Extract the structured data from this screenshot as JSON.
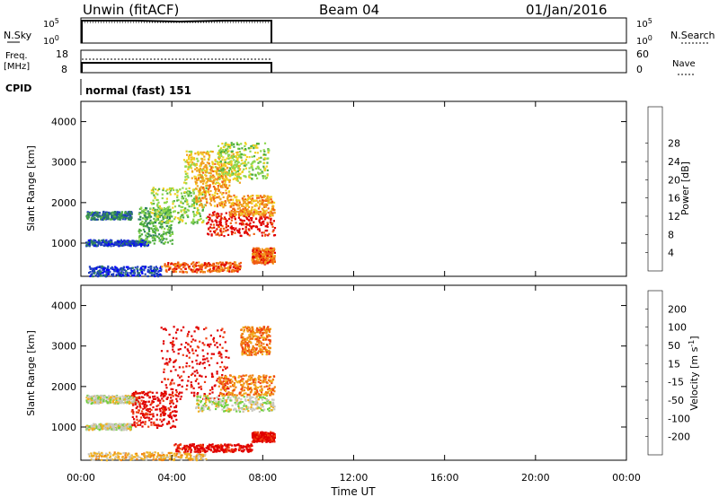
{
  "header": {
    "station": "Unwin (fitACF)",
    "beam": "Beam 04",
    "date": "01/Jan/2016"
  },
  "panels": {
    "nsky": {
      "label": "N.Sky",
      "left_ticks": [
        "10^5",
        "10^0"
      ],
      "right_label": "N.Search",
      "right_ticks": [
        "10^5",
        "10^0"
      ]
    },
    "freq": {
      "label_line1": "Freq.",
      "label_line2": "[MHz]",
      "left_ticks": [
        "18",
        "8"
      ],
      "right_label": "Nave",
      "right_ticks": [
        "60",
        "0"
      ]
    },
    "cpid": {
      "label": "CPID",
      "value": "normal (fast) 151"
    }
  },
  "chart_data": [
    {
      "type": "heatmap",
      "title": "",
      "ylabel": "Slant Range [km]",
      "xlabel": "Time UT",
      "ylim": [
        180,
        4500
      ],
      "xlim": [
        0,
        24
      ],
      "yticks": [
        "1000",
        "2000",
        "3000",
        "4000"
      ],
      "xticks": [
        "00:00",
        "04:00",
        "08:00",
        "12:00",
        "16:00",
        "20:00",
        "00:00"
      ],
      "colorbar_label": "Power [dB]",
      "colorbar_ticks": [
        "4",
        "8",
        "12",
        "16",
        "20",
        "24",
        "28"
      ],
      "colorbar_colors": [
        "#0000ff",
        "#1f3fbf",
        "#2d7f5f",
        "#4fae3f",
        "#8fd84f",
        "#f0d020",
        "#f0a020",
        "#f06010",
        "#e00000"
      ],
      "data_time_range": [
        0.0,
        8.5
      ],
      "regions": [
        {
          "t0": 0.2,
          "t1": 2.2,
          "r0": 1600,
          "r1": 1800,
          "level": 2
        },
        {
          "t0": 0.2,
          "t1": 3.0,
          "r0": 950,
          "r1": 1100,
          "level": 1
        },
        {
          "t0": 0.3,
          "t1": 3.5,
          "r0": 200,
          "r1": 450,
          "level": 1
        },
        {
          "t0": 2.5,
          "t1": 4.0,
          "r0": 1000,
          "r1": 1900,
          "level": 3
        },
        {
          "t0": 3.0,
          "t1": 5.5,
          "r0": 1500,
          "r1": 2400,
          "level": 4
        },
        {
          "t0": 3.5,
          "t1": 7.0,
          "r0": 300,
          "r1": 550,
          "level": 7
        },
        {
          "t0": 4.5,
          "t1": 7.0,
          "r0": 2500,
          "r1": 3300,
          "level": 5
        },
        {
          "t0": 5.0,
          "t1": 6.5,
          "r0": 1900,
          "r1": 3000,
          "level": 6
        },
        {
          "t0": 5.5,
          "t1": 8.5,
          "r0": 1200,
          "r1": 1800,
          "level": 8
        },
        {
          "t0": 6.5,
          "t1": 8.5,
          "r0": 1700,
          "r1": 2200,
          "level": 6
        },
        {
          "t0": 7.5,
          "t1": 8.5,
          "r0": 500,
          "r1": 900,
          "level": 7
        },
        {
          "t0": 6.0,
          "t1": 8.3,
          "r0": 2600,
          "r1": 3500,
          "level": 4
        }
      ]
    },
    {
      "type": "heatmap",
      "title": "",
      "ylabel": "Slant Range [km]",
      "xlabel": "Time UT",
      "ylim": [
        180,
        4500
      ],
      "xlim": [
        0,
        24
      ],
      "yticks": [
        "1000",
        "2000",
        "3000",
        "4000"
      ],
      "xticks": [
        "00:00",
        "04:00",
        "08:00",
        "12:00",
        "16:00",
        "20:00",
        "00:00"
      ],
      "colorbar_label": "Velocity [m s^-1]",
      "colorbar_ticks": [
        "200",
        "100",
        "50",
        "15",
        "-15",
        "-50",
        "-100",
        "-200"
      ],
      "colorbar_colors": [
        "#0028c8",
        "#1f5fbf",
        "#2d8f6f",
        "#70d040",
        "#c8c8c0",
        "#f0b020",
        "#f08010",
        "#f04010",
        "#e00000"
      ],
      "data_time_range": [
        0.0,
        8.5
      ],
      "regions": [
        {
          "t0": 0.2,
          "t1": 2.5,
          "r0": 1600,
          "r1": 1800,
          "level": 4
        },
        {
          "t0": 0.2,
          "t1": 2.2,
          "r0": 950,
          "r1": 1100,
          "level": 4
        },
        {
          "t0": 0.3,
          "t1": 5.5,
          "r0": 200,
          "r1": 400,
          "level": 5
        },
        {
          "t0": 2.2,
          "t1": 4.2,
          "r0": 1000,
          "r1": 1900,
          "level": 8
        },
        {
          "t0": 3.5,
          "t1": 6.5,
          "r0": 1700,
          "r1": 3500,
          "level": 8
        },
        {
          "t0": 4.0,
          "t1": 7.5,
          "r0": 400,
          "r1": 600,
          "level": 8
        },
        {
          "t0": 5.0,
          "t1": 8.5,
          "r0": 1400,
          "r1": 1800,
          "level": 4
        },
        {
          "t0": 6.0,
          "t1": 8.5,
          "r0": 1800,
          "r1": 2300,
          "level": 6
        },
        {
          "t0": 7.5,
          "t1": 8.5,
          "r0": 650,
          "r1": 900,
          "level": 8
        },
        {
          "t0": 7.0,
          "t1": 8.3,
          "r0": 2800,
          "r1": 3500,
          "level": 6
        }
      ]
    }
  ]
}
